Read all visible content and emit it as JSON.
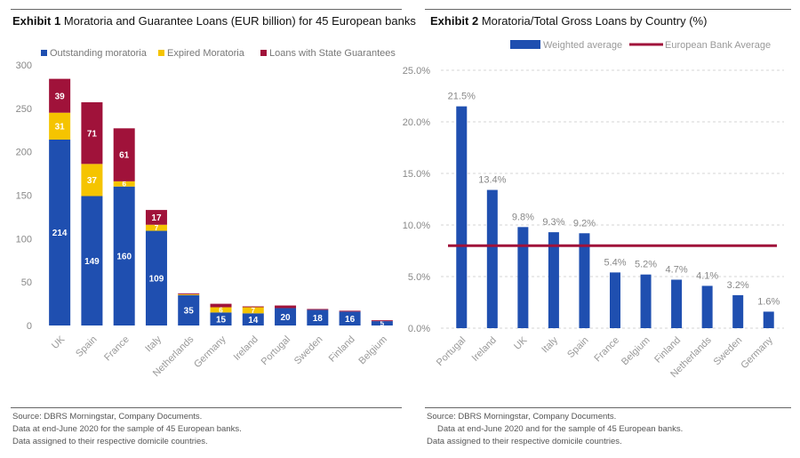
{
  "exhibit1": {
    "title_bold": "Exhibit 1",
    "title_rest": "Moratoria and Guarantee Loans  (EUR billion) for 45 European banks",
    "source_lines": [
      "Source: DBRS Morningstar, Company Documents.",
      "Data at end-June 2020 for the sample of 45 European banks.",
      "Data assigned to their respective domicile countries."
    ]
  },
  "exhibit2": {
    "title_bold": "Exhibit 2",
    "title_rest": "Moratoria/Total Gross Loans by Country (%)",
    "source_lines": [
      "Source: DBRS Morningstar, Company Documents.",
      "Data at end-June 2020 and for the sample of 45 European banks.",
      "Data assigned to their respective domicile countries."
    ]
  },
  "chart_data": [
    {
      "type": "bar",
      "stacked": true,
      "title": "Moratoria and Guarantee Loans  (EUR billion) for 45 European banks",
      "categories": [
        "UK",
        "Spain",
        "France",
        "Italy",
        "Netherlands",
        "Germany",
        "Ireland",
        "Portugal",
        "Sweden",
        "Finland",
        "Belgium"
      ],
      "series": [
        {
          "name": "Outstanding moratoria",
          "color": "#1f4fb0",
          "values": [
            214,
            149,
            160,
            109,
            35,
            15,
            14,
            20,
            18,
            16,
            5
          ]
        },
        {
          "name": "Expired Moratoria",
          "color": "#f5c400",
          "values": [
            31,
            37,
            6,
            7,
            1,
            6,
            7,
            0,
            0,
            0,
            0
          ]
        },
        {
          "name": "Loans with State Guarantees",
          "color": "#a0123a",
          "values": [
            39,
            71,
            61,
            17,
            1,
            4,
            1,
            3,
            1,
            1,
            1
          ]
        }
      ],
      "labels": {
        "Outstanding moratoria": [
          "214",
          "149",
          "160",
          "109",
          "35",
          "15",
          "14",
          "20",
          "18",
          "16",
          "5"
        ],
        "Expired Moratoria": [
          "31",
          "37",
          "6",
          "7",
          "",
          "6",
          "7",
          "",
          "",
          "",
          ""
        ],
        "Loans with State Guarantees": [
          "39",
          "71",
          "61",
          "17",
          "",
          "",
          "",
          "",
          "",
          "",
          ""
        ]
      },
      "ylim": [
        0,
        300
      ],
      "yticks": [
        0,
        50,
        100,
        150,
        200,
        250,
        300
      ],
      "grid": false,
      "legend": "top"
    },
    {
      "type": "bar",
      "title": "Moratoria/Total Gross Loans by Country (%)",
      "categories": [
        "Portugal",
        "Ireland",
        "UK",
        "Italy",
        "Spain",
        "France",
        "Belgium",
        "Finland",
        "Netherlands",
        "Sweden",
        "Germany"
      ],
      "series": [
        {
          "name": "Weighted average",
          "color": "#1f4fb0",
          "values": [
            21.5,
            13.4,
            9.8,
            9.3,
            9.2,
            5.4,
            5.2,
            4.7,
            4.1,
            3.2,
            1.6
          ]
        }
      ],
      "value_labels": [
        "21.5%",
        "13.4%",
        "9.8%",
        "9.3%",
        "9.2%",
        "5.4%",
        "5.2%",
        "4.7%",
        "4.1%",
        "3.2%",
        "1.6%"
      ],
      "reference_line": {
        "name": "European Bank Average",
        "color": "#a0123a",
        "value": 8.0
      },
      "ylim": [
        0,
        25
      ],
      "yticks": [
        0,
        5,
        10,
        15,
        20,
        25
      ],
      "ytick_labels": [
        "0.0%",
        "5.0%",
        "10.0%",
        "15.0%",
        "20.0%",
        "25.0%"
      ],
      "grid": true,
      "legend": "top"
    }
  ]
}
